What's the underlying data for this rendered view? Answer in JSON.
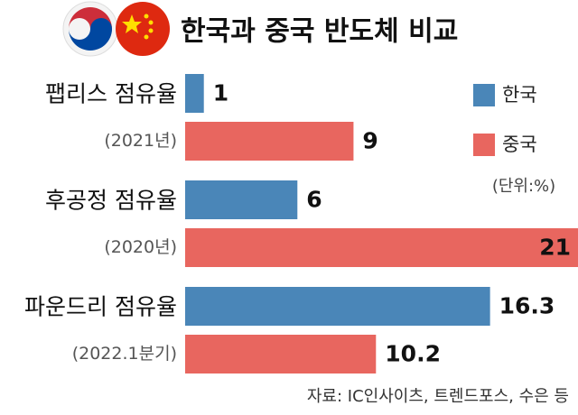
{
  "chart_data": {
    "type": "bar",
    "orientation": "horizontal",
    "title": "한국과 중국 반도체 비교",
    "categories": [
      "팹리스 점유율",
      "후공정 점유율",
      "파운드리 점유율"
    ],
    "category_periods": [
      "(2021년)",
      "(2020년)",
      "(2022.1분기)"
    ],
    "series": [
      {
        "name": "한국",
        "color": "#4a86b8",
        "values": [
          1,
          6,
          16.3
        ]
      },
      {
        "name": "중국",
        "color": "#e8665f",
        "values": [
          9,
          21,
          10.2
        ]
      }
    ],
    "unit_note": "(단위:%)",
    "source": "자료: IC인사이츠, 트렌드포스, 수은 등"
  }
}
